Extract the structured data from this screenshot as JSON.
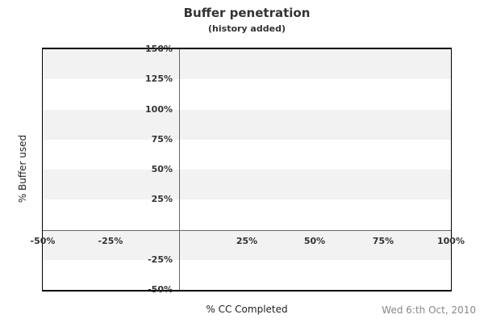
{
  "footer": {
    "date": "Wed 6:th Oct, 2010"
  },
  "chart_data": {
    "type": "scatter",
    "title": "Buffer penetration",
    "subtitle": "(history added)",
    "xlabel": "% CC Completed",
    "ylabel": "% Buffer used",
    "xlim": [
      -50,
      100
    ],
    "ylim": [
      -50,
      150
    ],
    "x_ticks": [
      {
        "label": "-50%",
        "value": -50
      },
      {
        "label": "-25%",
        "value": -25
      },
      {
        "label": "25%",
        "value": 25
      },
      {
        "label": "50%",
        "value": 50
      },
      {
        "label": "75%",
        "value": 75
      },
      {
        "label": "100%",
        "value": 100
      }
    ],
    "y_ticks": [
      {
        "label": "150%",
        "value": 150
      },
      {
        "label": "125%",
        "value": 125
      },
      {
        "label": "100%",
        "value": 100
      },
      {
        "label": "75%",
        "value": 75
      },
      {
        "label": "50%",
        "value": 50
      },
      {
        "label": "25%",
        "value": 25
      },
      {
        "label": "-25%",
        "value": -25
      },
      {
        "label": "-50%",
        "value": -50
      }
    ],
    "series": [],
    "legend": null,
    "notes": "empty plot area, no data points plotted",
    "grid": "alternating horizontal bands every 25%, topmost band (125%-150%) shaded, axes cross at 0,0",
    "axes_cross_at": [
      0,
      0
    ],
    "band_step": 25,
    "colors": {
      "band": "#f2f2f2",
      "background": "#ffffff",
      "axis_line": "#666666",
      "border": "#000000",
      "tick_text": "#333333",
      "title_text": "#333333",
      "date_text": "#888888"
    }
  }
}
